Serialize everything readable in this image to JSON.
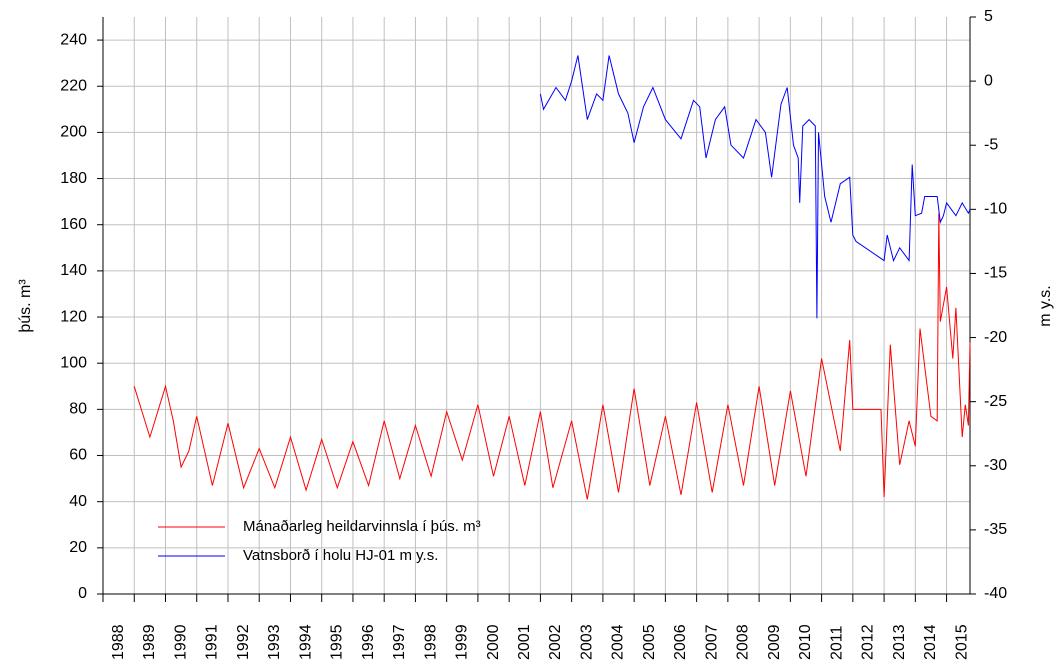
{
  "chart_data": {
    "type": "line",
    "ylabel": "þús. m³",
    "y2label": "m y.s.",
    "xlim": [
      1988,
      2015.75
    ],
    "xticks": [
      1988,
      1989,
      1990,
      1991,
      1992,
      1993,
      1994,
      1995,
      1996,
      1997,
      1998,
      1999,
      2000,
      2001,
      2002,
      2003,
      2004,
      2005,
      2006,
      2007,
      2008,
      2009,
      2010,
      2011,
      2012,
      2013,
      2014,
      2015
    ],
    "ylim": [
      0,
      250
    ],
    "yticks": [
      0,
      20,
      40,
      60,
      80,
      100,
      120,
      140,
      160,
      180,
      200,
      220,
      240
    ],
    "y2lim": [
      -40,
      5
    ],
    "y2ticks": [
      -40,
      -35,
      -30,
      -25,
      -20,
      -15,
      -10,
      -5,
      0,
      5
    ],
    "grid": true,
    "legend": "lower left",
    "series": [
      {
        "name": "Mánaðarleg heildarvinnsla í þús. m³",
        "color": "#ff0000",
        "x": [
          1989.0,
          1989.5,
          1990.0,
          1990.25,
          1990.5,
          1990.75,
          1991.0,
          1991.5,
          1992.0,
          1992.5,
          1993.0,
          1993.5,
          1994.0,
          1994.5,
          1995.0,
          1995.5,
          1996.0,
          1996.5,
          1997.0,
          1997.5,
          1998.0,
          1998.5,
          1999.0,
          1999.5,
          2000.0,
          2000.5,
          2001.0,
          2001.5,
          2002.0,
          2002.4,
          2003.0,
          2003.5,
          2004.0,
          2004.5,
          2005.0,
          2005.5,
          2006.0,
          2006.5,
          2007.0,
          2007.5,
          2008.0,
          2008.5,
          2009.0,
          2009.5,
          2010.0,
          2010.5,
          2011.0,
          2011.6,
          2011.9,
          2012.0,
          2012.9,
          2013.0,
          2013.2,
          2013.5,
          2013.8,
          2014.0,
          2014.15,
          2014.5,
          2014.7,
          2014.75,
          2014.8,
          2015.0,
          2015.2,
          2015.3,
          2015.5,
          2015.6,
          2015.7,
          2015.75
        ],
        "values": [
          90,
          68,
          90,
          75,
          55,
          62,
          77,
          47,
          74,
          46,
          63,
          46,
          68,
          45,
          67,
          46,
          66,
          47,
          75,
          50,
          73,
          51,
          79,
          58,
          82,
          51,
          77,
          47,
          79,
          46,
          75,
          41,
          82,
          44,
          89,
          47,
          77,
          43,
          83,
          44,
          82,
          47,
          90,
          47,
          88,
          51,
          102,
          62,
          110,
          80,
          80,
          42,
          108,
          56,
          75,
          64,
          115,
          77,
          75,
          165,
          118,
          133,
          102,
          124,
          68,
          82,
          73,
          109
        ]
      },
      {
        "name": "Vatnsborð í holu HJ-01 m y.s.",
        "color": "#0000ff",
        "axis": "y2",
        "x": [
          2002.0,
          2002.1,
          2002.5,
          2002.8,
          2003.0,
          2003.2,
          2003.5,
          2003.8,
          2004.0,
          2004.2,
          2004.5,
          2004.8,
          2005.0,
          2005.3,
          2005.6,
          2006.0,
          2006.5,
          2006.9,
          2007.1,
          2007.3,
          2007.6,
          2007.9,
          2008.1,
          2008.5,
          2008.9,
          2009.2,
          2009.4,
          2009.7,
          2009.9,
          2010.1,
          2010.25,
          2010.3,
          2010.4,
          2010.6,
          2010.8,
          2010.85,
          2010.9,
          2011.1,
          2011.3,
          2011.6,
          2011.9,
          2012.0,
          2012.1,
          2013.0,
          2013.1,
          2013.3,
          2013.5,
          2013.8,
          2013.9,
          2014.0,
          2014.2,
          2014.3,
          2014.7,
          2014.8,
          2014.9,
          2015.0,
          2015.3,
          2015.5,
          2015.7,
          2015.75
        ],
        "values": [
          -1,
          -2.2,
          -0.5,
          -1.5,
          0,
          2,
          -3,
          -1,
          -1.5,
          2,
          -1,
          -2.5,
          -4.8,
          -2,
          -0.5,
          -3,
          -4.5,
          -1.5,
          -2,
          -6,
          -3,
          -2,
          -5,
          -6,
          -3,
          -4,
          -7.5,
          -1.8,
          -0.5,
          -5,
          -6,
          -9.5,
          -3.5,
          -3,
          -3.5,
          -18.5,
          -4,
          -9,
          -11,
          -8,
          -7.5,
          -12,
          -12.5,
          -14,
          -12,
          -14,
          -13,
          -14,
          -6.5,
          -10.5,
          -10.3,
          -9,
          -9,
          -11,
          -10.5,
          -9.5,
          -10.5,
          -9.5,
          -10.3,
          -10
        ]
      }
    ]
  }
}
